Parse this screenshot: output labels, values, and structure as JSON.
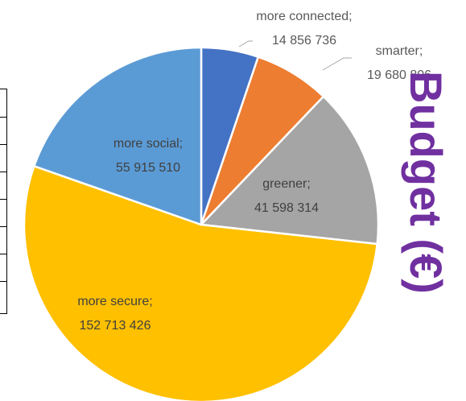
{
  "chart_data": {
    "type": "pie",
    "categories": [
      "more connected",
      "smarter",
      "greener",
      "more secure",
      "more social"
    ],
    "values": [
      14856736,
      19680806,
      41598314,
      152713426,
      55915510
    ],
    "data_labels": [
      {
        "name": "more connected;",
        "value": "14 856 736"
      },
      {
        "name": "smarter;",
        "value": "19 680 806"
      },
      {
        "name": "greener;",
        "value": "41 598 314"
      },
      {
        "name": "more secure;",
        "value": "152 713 426"
      },
      {
        "name": "more social;",
        "value": "55 915 510"
      }
    ],
    "colors": [
      "#4472c4",
      "#ed7d31",
      "#a5a5a5",
      "#ffc000",
      "#5b9bd5"
    ],
    "legend": "none",
    "title": ""
  },
  "side_text": "Budget (€)"
}
